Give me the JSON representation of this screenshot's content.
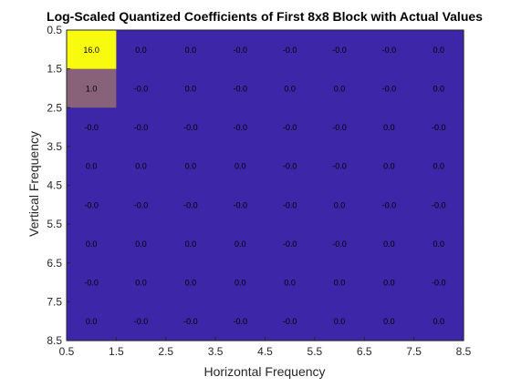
{
  "chart_data": {
    "type": "heatmap",
    "title": "Log-Scaled Quantized Coefficients of First 8x8 Block with Actual Values",
    "xlabel": "Horizontal Frequency",
    "ylabel": "Vertical Frequency",
    "xlim": [
      0.5,
      8.5
    ],
    "ylim": [
      0.5,
      8.5
    ],
    "x_ticks": [
      "0.5",
      "1.5",
      "2.5",
      "3.5",
      "4.5",
      "5.5",
      "6.5",
      "7.5",
      "8.5"
    ],
    "y_ticks": [
      "0.5",
      "1.5",
      "2.5",
      "3.5",
      "4.5",
      "5.5",
      "6.5",
      "7.5",
      "8.5"
    ],
    "y_direction": "reverse",
    "grid": false,
    "colors": {
      "low": "#3e26a8",
      "mid": "#f1b935",
      "high": "#f9fb0e"
    },
    "values": [
      [
        "16.0",
        "0.0",
        "0.0",
        "-0.0",
        "-0.0",
        "-0.0",
        "-0.0",
        "0.0"
      ],
      [
        "1.0",
        "-0.0",
        "0.0",
        "-0.0",
        "0.0",
        "0.0",
        "-0.0",
        "0.0"
      ],
      [
        "-0.0",
        "-0.0",
        "-0.0",
        "-0.0",
        "-0.0",
        "-0.0",
        "0.0",
        "-0.0"
      ],
      [
        "0.0",
        "0.0",
        "0.0",
        "0.0",
        "-0.0",
        "-0.0",
        "0.0",
        "0.0"
      ],
      [
        "-0.0",
        "-0.0",
        "-0.0",
        "-0.0",
        "-0.0",
        "0.0",
        "-0.0",
        "-0.0"
      ],
      [
        "0.0",
        "0.0",
        "0.0",
        "0.0",
        "-0.0",
        "-0.0",
        "0.0",
        "0.0"
      ],
      [
        "-0.0",
        "0.0",
        "0.0",
        "0.0",
        "0.0",
        "0.0",
        "0.0",
        "-0.0"
      ],
      [
        "0.0",
        "-0.0",
        "-0.0",
        "-0.0",
        "-0.0",
        "0.0",
        "0.0",
        "0.0"
      ]
    ]
  }
}
